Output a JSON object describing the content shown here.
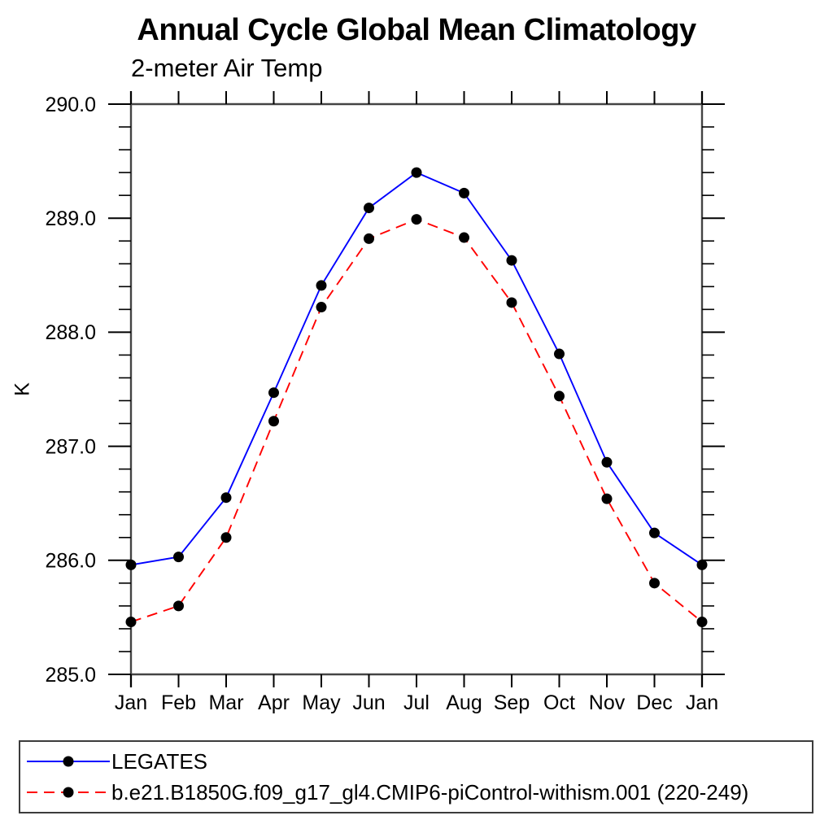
{
  "chart": {
    "title": "Annual Cycle Global Mean Climatology",
    "subtitle": "2-meter Air Temp",
    "ylabel": "K"
  },
  "chart_data": {
    "type": "line",
    "title": "Annual Cycle Global Mean Climatology",
    "subtitle": "2-meter Air Temp",
    "xlabel": "",
    "ylabel": "K",
    "categories": [
      "Jan",
      "Feb",
      "Mar",
      "Apr",
      "May",
      "Jun",
      "Jul",
      "Aug",
      "Sep",
      "Oct",
      "Nov",
      "Dec",
      "Jan"
    ],
    "ylim": [
      285.0,
      290.0
    ],
    "ytick_major": [
      285.0,
      286.0,
      287.0,
      288.0,
      289.0,
      290.0
    ],
    "ytick_major_labels": [
      "285.0",
      "286.0",
      "287.0",
      "288.0",
      "289.0",
      "290.0"
    ],
    "ytick_minor_step": 0.2,
    "grid": false,
    "legend_position": "bottom-box",
    "series": [
      {
        "name": "LEGATES",
        "color": "#0000ff",
        "dash": "solid",
        "marker": "filled-circle",
        "marker_color": "#000000",
        "values": [
          285.96,
          286.03,
          286.55,
          287.47,
          288.41,
          289.09,
          289.4,
          289.22,
          288.63,
          287.81,
          286.86,
          286.24,
          285.96
        ]
      },
      {
        "name": "b.e21.B1850G.f09_g17_gl4.CMIP6-piControl-withism.001 (220-249)",
        "color": "#ff0000",
        "dash": "dashed",
        "marker": "filled-circle",
        "marker_color": "#000000",
        "values": [
          285.46,
          285.6,
          286.2,
          287.22,
          288.22,
          288.82,
          288.99,
          288.83,
          288.26,
          287.44,
          286.54,
          285.8,
          285.46
        ]
      }
    ]
  },
  "colors": {
    "background": "#ffffff",
    "frame": "#444444",
    "tick": "#000000",
    "text": "#000000",
    "legend_border": "#3c3c3c",
    "series_blue": "#0000ff",
    "series_red": "#ff0000",
    "marker": "#000000"
  }
}
